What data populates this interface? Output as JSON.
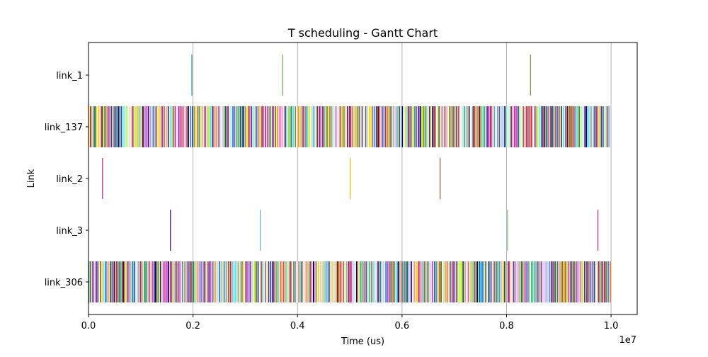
{
  "chart_data": {
    "type": "gantt",
    "title": "T scheduling - Gantt Chart",
    "xlabel": "Time (us)",
    "ylabel": "Link",
    "x_offset_label": "1e7",
    "xlim": [
      0,
      10500000
    ],
    "x_ticks": [
      0,
      2000000,
      4000000,
      6000000,
      8000000,
      10000000
    ],
    "x_tick_labels": [
      "0.0",
      "0.2",
      "0.4",
      "0.6",
      "0.8",
      "1.0"
    ],
    "grid": "vertical",
    "rows": [
      {
        "label": "link_1",
        "dense": false,
        "bars": [
          {
            "start": 1970000,
            "color": "#1f9fb4"
          },
          {
            "start": 3710000,
            "color": "#6aa84f"
          },
          {
            "start": 8450000,
            "color": "#7a8c2a"
          }
        ]
      },
      {
        "label": "link_137",
        "dense": true,
        "range": [
          0,
          9980000
        ],
        "palette": [
          "#e6194b",
          "#3cb44b",
          "#ffd700",
          "#4363d8",
          "#f58231",
          "#911eb4",
          "#46f0f0",
          "#f032e6",
          "#bcf60c",
          "#800000",
          "#008080",
          "#9a6324",
          "#000075",
          "#808000",
          "#5b2c8f",
          "#aaffc3",
          "#e6beff",
          "#2f4f4f",
          "#c71585",
          "#1e90ff"
        ]
      },
      {
        "label": "link_2",
        "dense": false,
        "bars": [
          {
            "start": 260000,
            "color": "#c21e8f"
          },
          {
            "start": 5000000,
            "color": "#e6b800"
          },
          {
            "start": 6720000,
            "color": "#a0522d"
          }
        ]
      },
      {
        "label": "link_3",
        "dense": false,
        "bars": [
          {
            "start": 1560000,
            "color": "#4b0082"
          },
          {
            "start": 3280000,
            "color": "#5fb7b7"
          },
          {
            "start": 8010000,
            "color": "#7fc97f"
          },
          {
            "start": 9740000,
            "color": "#c21e8f"
          }
        ]
      },
      {
        "label": "link_306",
        "dense": true,
        "range": [
          0,
          10000000
        ],
        "palette": [
          "#e6194b",
          "#3cb44b",
          "#ffd700",
          "#4363d8",
          "#f58231",
          "#911eb4",
          "#46f0f0",
          "#f032e6",
          "#bcf60c",
          "#800000",
          "#008080",
          "#9a6324",
          "#000075",
          "#808000",
          "#5b2c8f",
          "#aaffc3",
          "#e6beff",
          "#2f4f4f",
          "#c71585",
          "#1e90ff"
        ]
      }
    ]
  }
}
